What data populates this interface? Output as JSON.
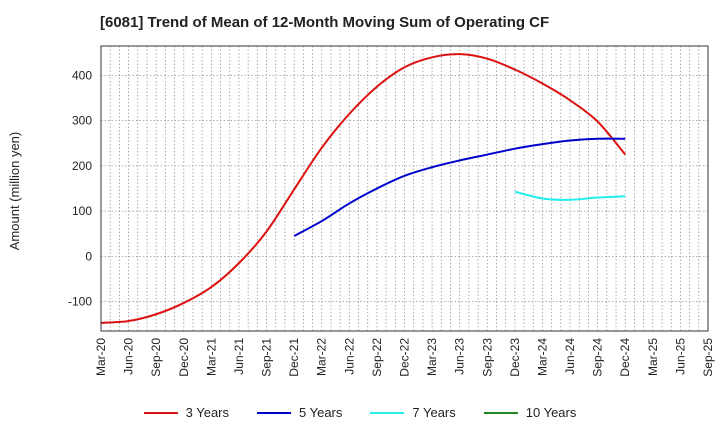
{
  "chart_data": {
    "type": "line",
    "title": "[6081]  Trend of Mean of 12-Month Moving Sum of Operating CF",
    "xlabel": "",
    "ylabel": "Amount (million yen)",
    "ylim": [
      -165,
      465
    ],
    "yticks": [
      -100,
      0,
      100,
      200,
      300,
      400
    ],
    "categories": [
      "Mar-20",
      "Jun-20",
      "Sep-20",
      "Dec-20",
      "Mar-21",
      "Jun-21",
      "Sep-21",
      "Dec-21",
      "Mar-22",
      "Jun-22",
      "Sep-22",
      "Dec-22",
      "Mar-23",
      "Jun-23",
      "Sep-23",
      "Dec-23",
      "Mar-24",
      "Jun-24",
      "Sep-24",
      "Dec-24",
      "Mar-25",
      "Jun-25",
      "Sep-25"
    ],
    "grid": true,
    "legend_position": "bottom",
    "series": [
      {
        "name": "3 Years",
        "color": "#dd1111",
        "values": [
          -147,
          -143,
          -128,
          -103,
          -68,
          -15,
          55,
          148,
          240,
          315,
          375,
          418,
          440,
          447,
          437,
          413,
          382,
          345,
          298,
          225,
          null,
          null,
          null
        ]
      },
      {
        "name": "5 Years",
        "color": "#0000cc",
        "values": [
          null,
          null,
          null,
          null,
          null,
          null,
          null,
          45,
          78,
          117,
          150,
          178,
          197,
          212,
          225,
          238,
          248,
          256,
          260,
          260,
          null,
          null,
          null
        ]
      },
      {
        "name": "7 Years",
        "color": "#22eeee",
        "values": [
          null,
          null,
          null,
          null,
          null,
          null,
          null,
          null,
          null,
          null,
          null,
          null,
          null,
          null,
          null,
          143,
          128,
          125,
          130,
          133,
          null,
          null,
          null
        ]
      },
      {
        "name": "10 Years",
        "color": "#228822",
        "values": [
          null,
          null,
          null,
          null,
          null,
          null,
          null,
          null,
          null,
          null,
          null,
          null,
          null,
          null,
          null,
          null,
          null,
          null,
          null,
          null,
          null,
          null,
          null
        ]
      }
    ]
  }
}
